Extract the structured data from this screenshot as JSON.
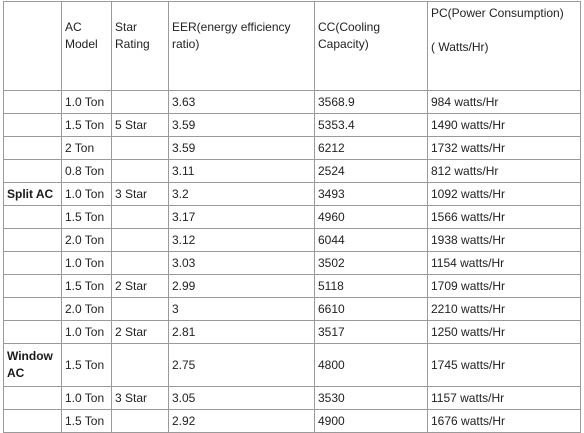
{
  "headers": {
    "type": "",
    "model": "AC Model",
    "star": "Star Rating",
    "eer": "EER(energy efficiency ratio)",
    "cc": "CC(Cooling Capacity)",
    "pc": "PC(Power Consumption)",
    "pc_unit": "( Watts/Hr)"
  },
  "rows": [
    {
      "type": "",
      "model": "1.0 Ton",
      "star": "",
      "eer": "3.63",
      "cc": "3568.9",
      "pc": "984 watts/Hr"
    },
    {
      "type": "",
      "model": "1.5 Ton",
      "star": "5 Star",
      "eer": "3.59",
      "cc": "5353.4",
      "pc": "1490 watts/Hr"
    },
    {
      "type": "",
      "model": "2 Ton",
      "star": "",
      "eer": "3.59",
      "cc": "6212",
      "pc": "1732 watts/Hr"
    },
    {
      "type": "",
      "model": "0.8 Ton",
      "star": "",
      "eer": "3.11",
      "cc": "2524",
      "pc": "812 watts/Hr"
    },
    {
      "type": "Split AC",
      "model": "1.0 Ton",
      "star": "3 Star",
      "eer": "3.2",
      "cc": "3493",
      "pc": "1092 watts/Hr"
    },
    {
      "type": "",
      "model": "1.5 Ton",
      "star": "",
      "eer": "3.17",
      "cc": "4960",
      "pc": "1566 watts/Hr"
    },
    {
      "type": "",
      "model": "2.0 Ton",
      "star": "",
      "eer": "3.12",
      "cc": "6044",
      "pc": "1938 watts/Hr"
    },
    {
      "type": "",
      "model": "1.0 Ton",
      "star": "",
      "eer": "3.03",
      "cc": "3502",
      "pc": "1154 watts/Hr"
    },
    {
      "type": "",
      "model": "1.5 Ton",
      "star": "2 Star",
      "eer": "2.99",
      "cc": "5118",
      "pc": "1709 watts/Hr"
    },
    {
      "type": "",
      "model": "2.0 Ton",
      "star": "",
      "eer": "3",
      "cc": "6610",
      "pc": "2210 watts/Hr"
    },
    {
      "type": "",
      "model": "1.0 Ton",
      "star": "2 Star",
      "eer": "2.81",
      "cc": "3517",
      "pc": "1250 watts/Hr"
    },
    {
      "type": "Window AC",
      "model": "1.5 Ton",
      "star": "",
      "eer": "2.75",
      "cc": "4800",
      "pc": "1745 watts/Hr"
    },
    {
      "type": "",
      "model": "1.0 Ton",
      "star": "3 Star",
      "eer": "3.05",
      "cc": "3530",
      "pc": "1157 watts/Hr"
    },
    {
      "type": "",
      "model": "1.5 Ton",
      "star": "",
      "eer": "2.92",
      "cc": "4900",
      "pc": "1676 watts/Hr"
    }
  ]
}
